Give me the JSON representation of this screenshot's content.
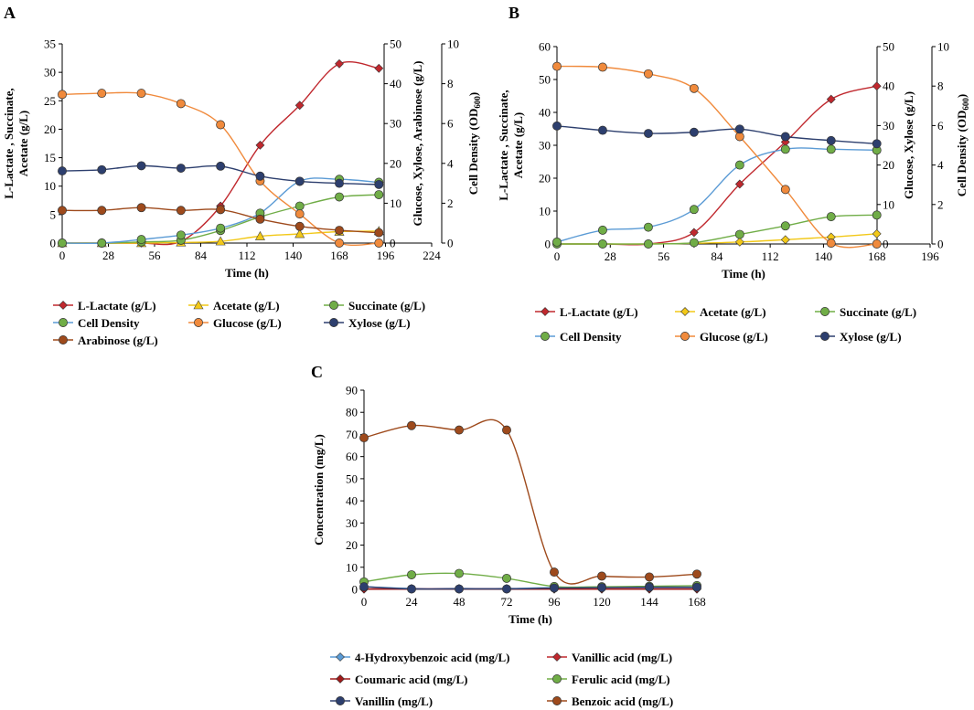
{
  "chart_data": [
    {
      "panel": "A",
      "type": "line",
      "x": [
        0,
        24,
        48,
        72,
        96,
        120,
        144,
        168,
        192
      ],
      "xlabel": "Time (h)",
      "xticks": [
        0,
        28,
        56,
        84,
        112,
        140,
        168,
        196,
        224
      ],
      "xlim": [
        0,
        224
      ],
      "axes": {
        "left": {
          "label": "L-Lactate , Succinate, Acetate (g/L)",
          "lim": [
            0,
            35
          ],
          "ticks": [
            0,
            5,
            10,
            15,
            20,
            25,
            30,
            35
          ]
        },
        "right1": {
          "label": "Glucose, Xylose, Arabinose  (g/L)",
          "lim": [
            0,
            50
          ],
          "ticks": [
            0,
            10,
            20,
            30,
            40,
            50
          ]
        },
        "right2": {
          "label": "Cell Density (OD600)",
          "label_main": "Cell Density (OD",
          "label_sub": "600",
          "label_end": ")",
          "lim": [
            0,
            10
          ],
          "ticks": [
            0,
            2,
            4,
            6,
            8,
            10
          ]
        }
      },
      "series": [
        {
          "name": "L-Lactate (g/L)",
          "axis": "left",
          "marker": "diamond",
          "color": "#c0282e",
          "values": [
            0,
            0,
            0,
            0.3,
            6.5,
            17.2,
            24.2,
            31.5,
            30.7
          ]
        },
        {
          "name": "Acetate (g/L)",
          "axis": "left",
          "marker": "triangle",
          "color": "#f2c818",
          "values": [
            0,
            0,
            0,
            0.1,
            0.3,
            1.2,
            1.6,
            2.0,
            2.1
          ]
        },
        {
          "name": "Succinate (g/L)",
          "axis": "left",
          "marker": "circle",
          "color": "#70ad47",
          "values": [
            0,
            0,
            0.2,
            0.5,
            2.2,
            4.6,
            6.5,
            8.1,
            8.5
          ]
        },
        {
          "name": "Cell Density",
          "axis": "right2",
          "marker": "circle",
          "color": "#70ad47",
          "line_color": "#5b9bd5",
          "values": [
            0,
            0,
            0.18,
            0.4,
            0.75,
            1.5,
            3.1,
            3.2,
            3.05
          ]
        },
        {
          "name": "Glucose (g/L)",
          "axis": "right1",
          "marker": "circle",
          "color": "#f08a3c",
          "values": [
            37.3,
            37.6,
            37.6,
            35.0,
            29.7,
            15.6,
            7.3,
            0,
            0
          ]
        },
        {
          "name": "Xylose (g/L)",
          "axis": "right1",
          "marker": "circle",
          "color": "#2d3f6e",
          "values": [
            18.1,
            18.4,
            19.4,
            18.8,
            19.3,
            16.8,
            15.5,
            15.0,
            14.7
          ]
        },
        {
          "name": "Arabinose (g/L)",
          "axis": "right1",
          "marker": "circle",
          "color": "#9e4a1c",
          "values": [
            8.2,
            8.2,
            8.9,
            8.2,
            8.4,
            6.0,
            4.2,
            3.2,
            2.6
          ]
        }
      ]
    },
    {
      "panel": "B",
      "type": "line",
      "x": [
        0,
        24,
        48,
        72,
        96,
        120,
        144,
        168
      ],
      "xlabel": "Time (h)",
      "xticks": [
        0,
        28,
        56,
        84,
        112,
        140,
        168,
        196
      ],
      "xlim": [
        0,
        196
      ],
      "axes": {
        "left": {
          "label": "L-Lactate , Succinate, Acetate (g/L)",
          "lim": [
            0,
            60
          ],
          "ticks": [
            0,
            10,
            20,
            30,
            40,
            50,
            60
          ]
        },
        "right1": {
          "label": "Glucose, Xylose (g/L)",
          "lim": [
            0,
            50
          ],
          "ticks": [
            0,
            10,
            20,
            30,
            40,
            50
          ]
        },
        "right2": {
          "label": "Cell Density (OD600)",
          "label_main": "Cell Density (OD",
          "label_sub": "600",
          "label_end": ")",
          "lim": [
            0,
            10
          ],
          "ticks": [
            0,
            2,
            4,
            6,
            8,
            10
          ]
        }
      },
      "series": [
        {
          "name": "L-Lactate (g/L)",
          "axis": "left",
          "marker": "diamond",
          "color": "#c0282e",
          "values": [
            0,
            0,
            0,
            3.5,
            18.2,
            31.0,
            44.0,
            48.0
          ]
        },
        {
          "name": "Acetate (g/L)",
          "axis": "left",
          "marker": "diamond",
          "color": "#f2c818",
          "values": [
            0,
            0,
            0,
            0.2,
            0.6,
            1.3,
            2.1,
            3.1
          ]
        },
        {
          "name": "Succinate (g/L)",
          "axis": "left",
          "marker": "circle",
          "color": "#70ad47",
          "values": [
            0,
            0,
            0,
            0.4,
            2.9,
            5.5,
            8.3,
            8.8
          ]
        },
        {
          "name": "Cell Density",
          "axis": "right2",
          "marker": "circle",
          "color": "#70ad47",
          "line_color": "#5b9bd5",
          "values": [
            0.1,
            0.7,
            0.85,
            1.75,
            4.0,
            4.8,
            4.8,
            4.75
          ]
        },
        {
          "name": "Glucose (g/L)",
          "axis": "right1",
          "marker": "circle",
          "color": "#f08a3c",
          "values": [
            45.0,
            44.8,
            43.1,
            39.4,
            27.2,
            13.8,
            0.2,
            0
          ]
        },
        {
          "name": "Xylose (g/L)",
          "axis": "right1",
          "marker": "circle",
          "color": "#2d3f6e",
          "values": [
            29.9,
            28.8,
            28.0,
            28.3,
            29.1,
            27.2,
            26.2,
            25.4
          ]
        }
      ]
    },
    {
      "panel": "C",
      "type": "line",
      "x": [
        0,
        24,
        48,
        72,
        96,
        120,
        144,
        168
      ],
      "xlabel": "Time (h)",
      "xticks": [
        0,
        24,
        48,
        72,
        96,
        120,
        144,
        168
      ],
      "xlim": [
        0,
        168
      ],
      "axes": {
        "left": {
          "label": "Concentration (mg/L)",
          "lim": [
            0,
            90
          ],
          "ticks": [
            0,
            10,
            20,
            30,
            40,
            50,
            60,
            70,
            80,
            90
          ]
        }
      },
      "series": [
        {
          "name": "4-Hydroxybenzoic acid (mg/L)",
          "axis": "left",
          "marker": "diamond",
          "color": "#5b9bd5",
          "values": [
            1.2,
            0.4,
            0.4,
            0.4,
            0.8,
            0.8,
            0.8,
            0.8
          ]
        },
        {
          "name": "Vanillic acid (mg/L)",
          "axis": "left",
          "marker": "diamond",
          "color": "#c0282e",
          "values": [
            0.2,
            0.2,
            0.2,
            0.2,
            0.2,
            0.2,
            0.2,
            0.2
          ]
        },
        {
          "name": "Coumaric acid (mg/L)",
          "axis": "left",
          "marker": "diamond",
          "color": "#a01a1a",
          "values": [
            0.1,
            0.1,
            0.1,
            0.1,
            0.1,
            0.1,
            0.1,
            0.1
          ]
        },
        {
          "name": "Ferulic acid (mg/L)",
          "axis": "left",
          "marker": "circle",
          "color": "#70ad47",
          "values": [
            3.4,
            6.6,
            7.2,
            5.0,
            1.3,
            1.2,
            1.4,
            1.7
          ]
        },
        {
          "name": "Vanillin (mg/L)",
          "axis": "left",
          "marker": "circle",
          "color": "#2d3f6e",
          "values": [
            1.2,
            0.2,
            0.2,
            0.2,
            0.6,
            0.8,
            1.0,
            1.0
          ]
        },
        {
          "name": "Benzoic acid (mg/L)",
          "axis": "left",
          "marker": "circle",
          "color": "#9e4a1c",
          "values": [
            68.5,
            74.0,
            72.0,
            72.0,
            7.8,
            6.0,
            5.6,
            6.9
          ]
        }
      ]
    }
  ]
}
